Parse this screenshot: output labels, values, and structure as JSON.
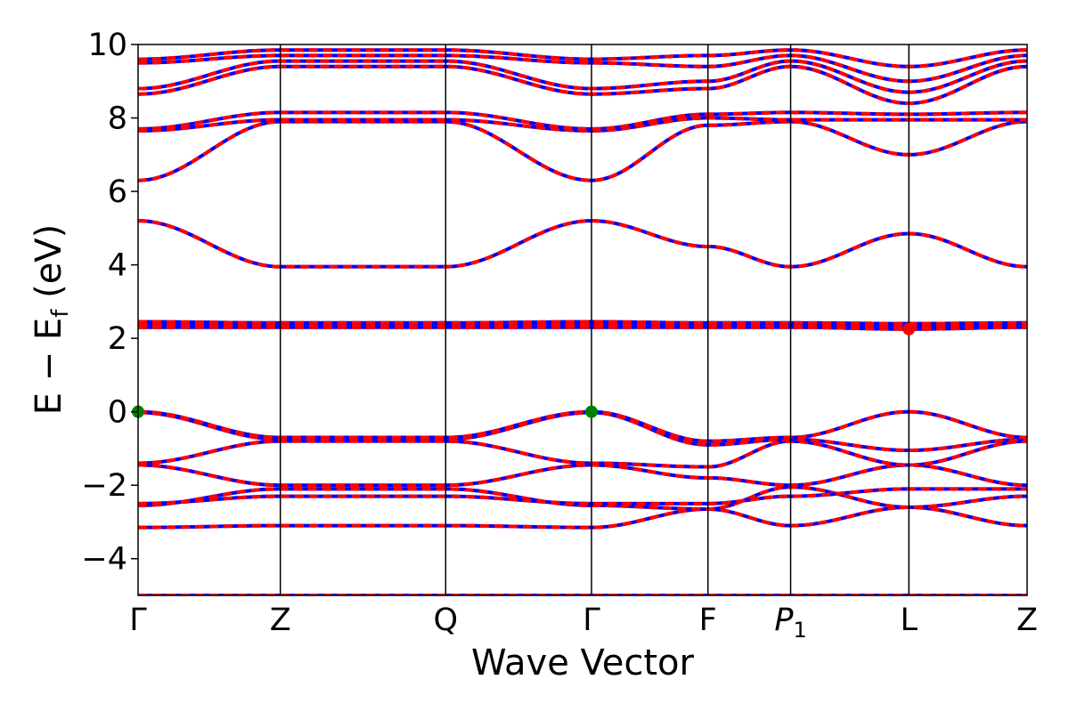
{
  "chart_data": {
    "type": "line",
    "title": "",
    "xlabel": "Wave Vector",
    "ylabel_parts": {
      "main": "E − E",
      "sub": "f",
      "unit": " (eV)"
    },
    "ylim": [
      -5,
      10
    ],
    "yticks": [
      -4,
      -2,
      0,
      2,
      4,
      6,
      8,
      10
    ],
    "ytick_labels": [
      "−4",
      "−2",
      "0",
      "2",
      "4",
      "6",
      "8",
      "10"
    ],
    "kpath": [
      {
        "label": "Γ",
        "x": 0.0
      },
      {
        "label": "Z",
        "x": 0.16
      },
      {
        "label": "Q",
        "x": 0.346
      },
      {
        "label": "Γ",
        "x": 0.51
      },
      {
        "label": "F",
        "x": 0.641
      },
      {
        "label": "P",
        "sub": "1",
        "x": 0.734
      },
      {
        "label": "L",
        "x": 0.867
      },
      {
        "label": "Z",
        "x": 1.0
      }
    ],
    "grid": false,
    "legend": "none",
    "colors": {
      "spin_up": "#0000ff",
      "spin_down": "#ff0000",
      "vbm": "#008000",
      "cbm": "#ff0000"
    },
    "markers": [
      {
        "name": "VBM",
        "x": 0.0,
        "y": 0.0,
        "color": "#008000"
      },
      {
        "name": "VBM",
        "x": 0.51,
        "y": 0.0,
        "color": "#008000"
      },
      {
        "name": "CBM",
        "x": 0.867,
        "y": 2.25,
        "color": "#ff0000"
      }
    ],
    "series": [
      {
        "values": [
          -3.15,
          -3.1,
          -3.1,
          -3.15,
          -2.65,
          -3.1,
          -2.6,
          -3.1
        ]
      },
      {
        "values": [
          -2.55,
          -2.1,
          -2.1,
          -2.55,
          -2.65,
          -2.05,
          -2.6,
          -2.3
        ]
      },
      {
        "values": [
          -2.5,
          -2.3,
          -2.3,
          -2.5,
          -2.5,
          -2.3,
          -2.1,
          -2.1
        ]
      },
      {
        "values": [
          -1.45,
          -2.0,
          -2.0,
          -1.45,
          -1.8,
          -2.0,
          -1.45,
          -2.0
        ]
      },
      {
        "values": [
          -1.4,
          -0.8,
          -0.8,
          -1.4,
          -1.5,
          -0.8,
          -1.45,
          -0.8
        ]
      },
      {
        "values": [
          -0.02,
          -0.75,
          -0.75,
          -0.02,
          -0.9,
          -0.75,
          -1.05,
          -0.75
        ]
      },
      {
        "values": [
          0.0,
          -0.7,
          -0.7,
          0.0,
          -0.8,
          -0.7,
          0.0,
          -0.7
        ]
      },
      {
        "values": [
          2.3,
          2.3,
          2.3,
          2.3,
          2.3,
          2.3,
          2.25,
          2.3
        ]
      },
      {
        "values": [
          2.38,
          2.36,
          2.36,
          2.38,
          2.36,
          2.36,
          2.33,
          2.36
        ]
      },
      {
        "values": [
          2.45,
          2.42,
          2.42,
          2.45,
          2.42,
          2.42,
          2.4,
          2.42
        ]
      },
      {
        "values": [
          5.2,
          3.95,
          3.95,
          5.2,
          4.5,
          3.95,
          4.85,
          3.95
        ]
      },
      {
        "values": [
          6.3,
          7.9,
          7.9,
          6.3,
          7.8,
          7.9,
          7.0,
          7.9
        ]
      },
      {
        "values": [
          7.65,
          7.95,
          7.95,
          7.65,
          8.0,
          7.95,
          7.95,
          7.95
        ]
      },
      {
        "values": [
          7.7,
          8.15,
          8.15,
          7.7,
          8.1,
          8.15,
          8.1,
          8.15
        ]
      },
      {
        "values": [
          8.65,
          9.4,
          9.4,
          8.65,
          8.8,
          9.4,
          8.4,
          9.4
        ]
      },
      {
        "values": [
          8.8,
          9.55,
          9.55,
          8.8,
          9.0,
          9.55,
          8.7,
          9.55
        ]
      },
      {
        "values": [
          9.5,
          9.7,
          9.7,
          9.5,
          9.4,
          9.7,
          9.0,
          9.7
        ]
      },
      {
        "values": [
          9.6,
          9.85,
          9.85,
          9.6,
          9.7,
          9.85,
          9.4,
          9.85
        ]
      },
      {
        "values": [
          -5.0,
          -5.0,
          -5.0,
          -5.0,
          -5.0,
          -5.0,
          -5.0,
          -5.0
        ]
      }
    ]
  }
}
